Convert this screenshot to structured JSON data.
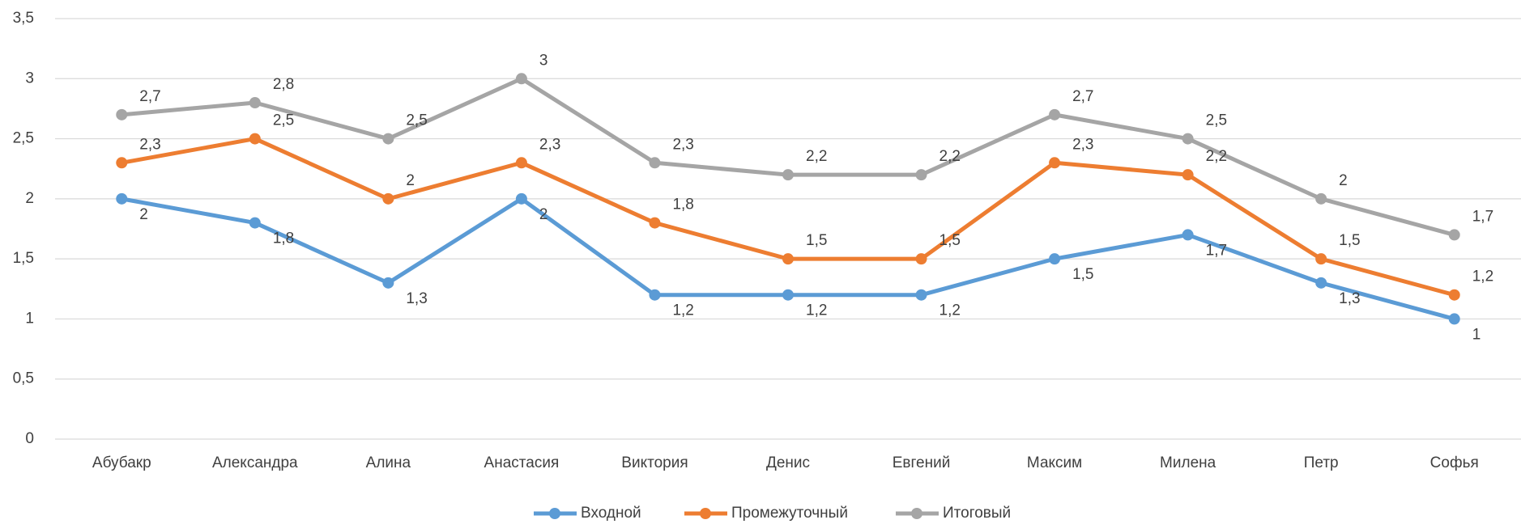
{
  "chart_data": {
    "type": "line",
    "categories": [
      "Абубакр",
      "Александра",
      "Алина",
      "Анастасия",
      "Виктория",
      "Денис",
      "Евгений",
      "Максим",
      "Милена",
      "Петр",
      "Софья"
    ],
    "series": [
      {
        "name": "Входной",
        "color": "#5b9bd5",
        "values": [
          2,
          1.8,
          1.3,
          2,
          1.2,
          1.2,
          1.2,
          1.5,
          1.7,
          1.3,
          1
        ],
        "value_labels": [
          "2",
          "1,8",
          "1,3",
          "2",
          "1,2",
          "1,2",
          "1,2",
          "1,5",
          "1,7",
          "1,3",
          "1"
        ]
      },
      {
        "name": "Промежуточный",
        "color": "#ed7d31",
        "values": [
          2.3,
          2.5,
          2,
          2.3,
          1.8,
          1.5,
          1.5,
          2.3,
          2.2,
          1.5,
          1.2
        ],
        "value_labels": [
          "2,3",
          "2,5",
          "2",
          "2,3",
          "1,8",
          "1,5",
          "1,5",
          "2,3",
          "2,2",
          "1,5",
          "1,2"
        ]
      },
      {
        "name": "Итоговый",
        "color": "#a5a5a5",
        "values": [
          2.7,
          2.8,
          2.5,
          3,
          2.3,
          2.2,
          2.2,
          2.7,
          2.5,
          2,
          1.7
        ],
        "value_labels": [
          "2,7",
          "2,8",
          "2,5",
          "3",
          "2,3",
          "2,2",
          "2,2",
          "2,7",
          "2,5",
          "2",
          "1,7"
        ]
      }
    ],
    "ylim": [
      0,
      3.5
    ],
    "yticks": [
      0,
      {
        "value": 0.5,
        "label": "0,5"
      },
      1,
      {
        "value": 1.5,
        "label": "1,5"
      },
      2,
      {
        "value": 2.5,
        "label": "2,5"
      },
      3,
      {
        "value": 3.5,
        "label": "3,5"
      }
    ],
    "grid": true,
    "legend": "bottom"
  }
}
